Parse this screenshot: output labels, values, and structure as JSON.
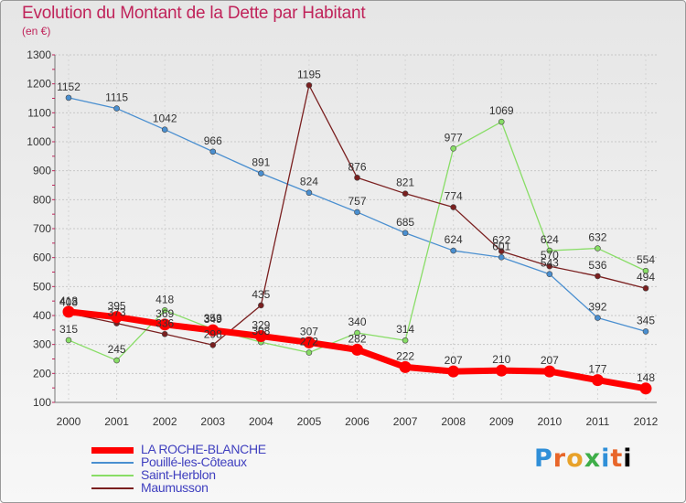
{
  "header": {
    "title": "Evolution du Montant de la Dette par Habitant",
    "subtitle": "(en €)"
  },
  "logo": {
    "letters": [
      "P",
      "r",
      "o",
      "x",
      "i",
      "t",
      "i"
    ]
  },
  "chart_data": {
    "type": "line",
    "title": "Evolution du Montant de la Dette par Habitant",
    "subtitle": "(en €)",
    "categories": [
      "2000",
      "2001",
      "2002",
      "2003",
      "2004",
      "2005",
      "2006",
      "2007",
      "2008",
      "2009",
      "2010",
      "2011",
      "2012"
    ],
    "ylim": [
      100,
      1300
    ],
    "yticks": [
      100,
      200,
      300,
      400,
      500,
      600,
      700,
      800,
      900,
      1000,
      1100,
      1200,
      1300
    ],
    "grid": true,
    "legend_position": "bottom-left",
    "series": [
      {
        "name": "LA ROCHE-BLANCHE",
        "color": "#ff0000",
        "values": [
          413,
          395,
          369,
          349,
          329,
          307,
          282,
          222,
          207,
          210,
          207,
          177,
          148
        ]
      },
      {
        "name": "Pouillé-les-Côteaux",
        "color": "#4a8fd0",
        "values": [
          1152,
          1115,
          1042,
          966,
          891,
          824,
          757,
          685,
          624,
          601,
          543,
          392,
          345
        ]
      },
      {
        "name": "Saint-Herblon",
        "color": "#88dd66",
        "values": [
          315,
          245,
          418,
          353,
          308,
          272,
          340,
          314,
          977,
          1069,
          624,
          632,
          554
        ]
      },
      {
        "name": "Maumusson",
        "color": "#7a1f1f",
        "values": [
          408,
          373,
          336,
          298,
          435,
          1195,
          876,
          821,
          774,
          622,
          570,
          536,
          494
        ]
      }
    ]
  }
}
